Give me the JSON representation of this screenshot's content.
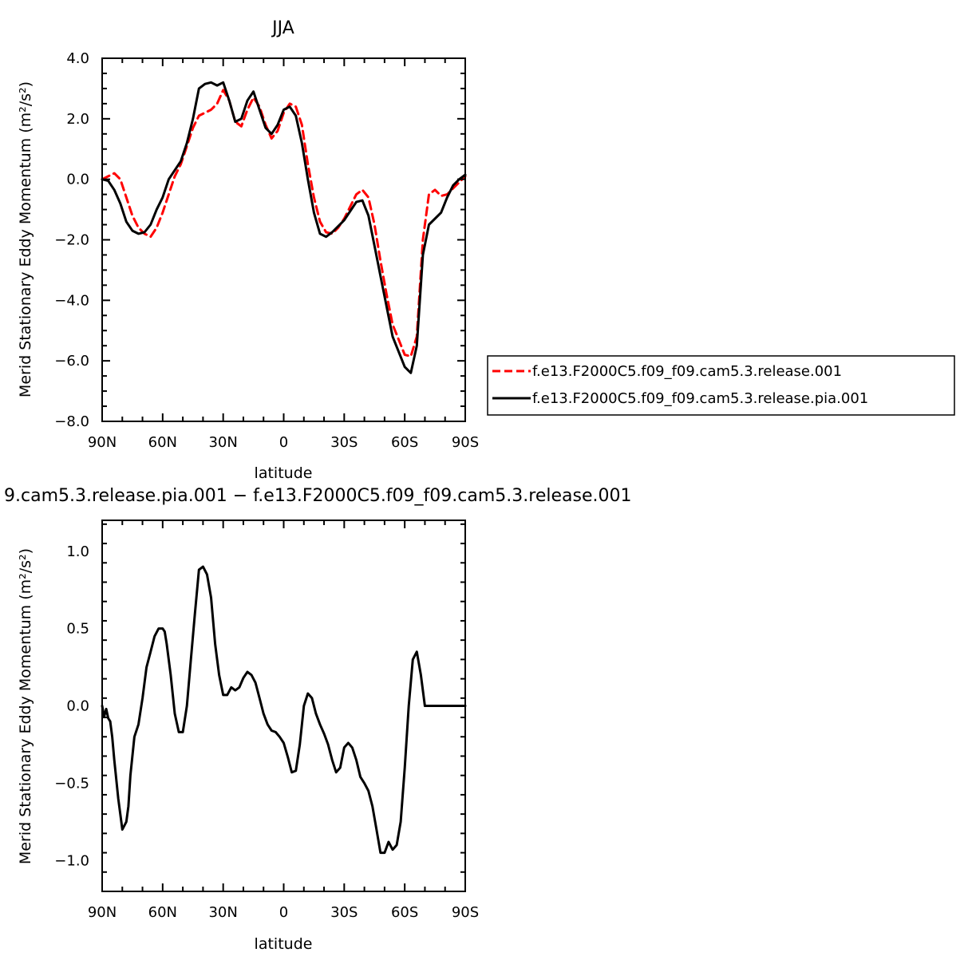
{
  "chart_data": [
    {
      "type": "line",
      "title": "JJA",
      "xlabel": "latitude",
      "ylabel": "Merid Stationary Eddy Momentum (m²/s²)",
      "xlim": [
        90,
        -90
      ],
      "ylim": [
        -8,
        4
      ],
      "x_ticks": [
        {
          "value": 90,
          "label": "90N"
        },
        {
          "value": 60,
          "label": "60N"
        },
        {
          "value": 30,
          "label": "30N"
        },
        {
          "value": 0,
          "label": "0"
        },
        {
          "value": -30,
          "label": "30S"
        },
        {
          "value": -60,
          "label": "60S"
        },
        {
          "value": -90,
          "label": "90S"
        }
      ],
      "y_ticks": [
        {
          "value": 4,
          "label": "4.0"
        },
        {
          "value": 2,
          "label": "2.0"
        },
        {
          "value": 0,
          "label": "0.0"
        },
        {
          "value": -2,
          "label": "−2.0"
        },
        {
          "value": -4,
          "label": "−4.0"
        },
        {
          "value": -6,
          "label": "−6.0"
        },
        {
          "value": -8,
          "label": "−8.0"
        }
      ],
      "legend_position": "right",
      "series": [
        {
          "name": "f.e13.F2000C5.f09_f09.cam5.3.release.001",
          "color": "#ff0000",
          "dash": "dashed",
          "x": [
            90,
            87,
            84,
            81,
            78,
            75,
            72,
            69,
            66,
            63,
            60,
            57,
            54,
            51,
            48,
            45,
            42,
            39,
            36,
            33,
            30,
            27,
            24,
            21,
            18,
            15,
            12,
            9,
            6,
            3,
            0,
            -3,
            -6,
            -9,
            -12,
            -15,
            -18,
            -21,
            -24,
            -27,
            -30,
            -33,
            -36,
            -39,
            -42,
            -45,
            -48,
            -51,
            -54,
            -57,
            -60,
            -63,
            -66,
            -69,
            -72,
            -75,
            -78,
            -81,
            -84,
            -87,
            -90
          ],
          "y": [
            0.0,
            0.1,
            0.2,
            0.0,
            -0.6,
            -1.2,
            -1.6,
            -1.8,
            -1.9,
            -1.6,
            -1.1,
            -0.5,
            0.1,
            0.5,
            1.1,
            1.7,
            2.1,
            2.2,
            2.3,
            2.5,
            2.95,
            2.6,
            1.9,
            1.75,
            2.3,
            2.7,
            2.4,
            1.8,
            1.35,
            1.6,
            2.2,
            2.5,
            2.4,
            1.8,
            0.5,
            -0.6,
            -1.4,
            -1.75,
            -1.8,
            -1.6,
            -1.3,
            -0.9,
            -0.5,
            -0.35,
            -0.6,
            -1.5,
            -2.7,
            -3.8,
            -4.8,
            -5.3,
            -5.8,
            -5.85,
            -5.2,
            -2.0,
            -0.5,
            -0.35,
            -0.55,
            -0.5,
            -0.3,
            -0.1,
            0.1
          ]
        },
        {
          "name": "f.e13.F2000C5.f09_f09.cam5.3.release.pia.001",
          "color": "#000000",
          "dash": "solid",
          "x": [
            90,
            87,
            84,
            81,
            78,
            75,
            72,
            69,
            66,
            63,
            60,
            57,
            54,
            51,
            48,
            45,
            42,
            39,
            36,
            33,
            30,
            27,
            24,
            21,
            18,
            15,
            12,
            9,
            6,
            3,
            0,
            -3,
            -6,
            -9,
            -12,
            -15,
            -18,
            -21,
            -24,
            -27,
            -30,
            -33,
            -36,
            -39,
            -42,
            -45,
            -48,
            -51,
            -54,
            -57,
            -60,
            -63,
            -66,
            -69,
            -72,
            -75,
            -78,
            -81,
            -84,
            -87,
            -90
          ],
          "y": [
            0.0,
            -0.05,
            -0.35,
            -0.8,
            -1.4,
            -1.7,
            -1.8,
            -1.75,
            -1.5,
            -1.0,
            -0.6,
            0.0,
            0.3,
            0.6,
            1.2,
            2.0,
            3.0,
            3.15,
            3.2,
            3.1,
            3.2,
            2.6,
            1.9,
            2.0,
            2.6,
            2.9,
            2.3,
            1.7,
            1.5,
            1.8,
            2.3,
            2.4,
            2.1,
            1.2,
            0.0,
            -1.1,
            -1.8,
            -1.9,
            -1.75,
            -1.55,
            -1.35,
            -1.05,
            -0.75,
            -0.7,
            -1.2,
            -2.2,
            -3.2,
            -4.2,
            -5.2,
            -5.7,
            -6.2,
            -6.4,
            -5.5,
            -2.5,
            -1.5,
            -1.3,
            -1.1,
            -0.6,
            -0.2,
            0.0,
            0.15
          ]
        }
      ]
    },
    {
      "type": "line",
      "title": "9.cam5.3.release.pia.001 − f.e13.F2000C5.f09_f09.cam5.3.release.001",
      "xlabel": "latitude",
      "ylabel": "Merid Stationary Eddy Momentum (m²/s²)",
      "xlim": [
        90,
        -90
      ],
      "ylim": [
        -1.2,
        1.2
      ],
      "x_ticks": [
        {
          "value": 90,
          "label": "90N"
        },
        {
          "value": 60,
          "label": "60N"
        },
        {
          "value": 30,
          "label": "30N"
        },
        {
          "value": 0,
          "label": "0"
        },
        {
          "value": -30,
          "label": "30S"
        },
        {
          "value": -60,
          "label": "60S"
        },
        {
          "value": -90,
          "label": "90S"
        }
      ],
      "y_ticks": [
        {
          "value": 1.0,
          "label": "1.0"
        },
        {
          "value": 0.5,
          "label": "0.5"
        },
        {
          "value": 0.0,
          "label": "0.0"
        },
        {
          "value": -0.5,
          "label": "−0.5"
        },
        {
          "value": -1.0,
          "label": "−1.0"
        }
      ],
      "series": [
        {
          "color": "#000000",
          "dash": "solid",
          "x": [
            90,
            89,
            88,
            87,
            86,
            85,
            84,
            82,
            80,
            78,
            77,
            76,
            74,
            72,
            70,
            68,
            66,
            64,
            62,
            60,
            59,
            58,
            56,
            54,
            52,
            50,
            48,
            46,
            44,
            42,
            40,
            38,
            36,
            34,
            32,
            30,
            28,
            26,
            24,
            22,
            20,
            18,
            16,
            14,
            12,
            10,
            8,
            6,
            4,
            2,
            0,
            -2,
            -4,
            -6,
            -8,
            -10,
            -12,
            -14,
            -16,
            -18,
            -20,
            -22,
            -24,
            -26,
            -28,
            -30,
            -32,
            -34,
            -36,
            -38,
            -40,
            -42,
            -44,
            -46,
            -48,
            -50,
            -52,
            -54,
            -56,
            -58,
            -60,
            -62,
            -64,
            -66,
            -68,
            -70,
            -71,
            -72,
            -73,
            -74,
            -75,
            -76,
            -77,
            -78,
            -80,
            -82,
            -84,
            -86,
            -87,
            -88,
            -89,
            -90
          ],
          "y": [
            0.0,
            -0.07,
            -0.02,
            -0.08,
            -0.1,
            -0.2,
            -0.35,
            -0.6,
            -0.8,
            -0.75,
            -0.65,
            -0.45,
            -0.2,
            -0.12,
            0.05,
            0.25,
            0.35,
            0.45,
            0.5,
            0.5,
            0.48,
            0.4,
            0.2,
            -0.05,
            -0.17,
            -0.17,
            0.0,
            0.3,
            0.6,
            0.88,
            0.9,
            0.85,
            0.7,
            0.4,
            0.2,
            0.07,
            0.07,
            0.12,
            0.1,
            0.12,
            0.18,
            0.22,
            0.2,
            0.15,
            0.05,
            -0.05,
            -0.12,
            -0.16,
            -0.17,
            -0.2,
            -0.24,
            -0.33,
            -0.43,
            -0.42,
            -0.25,
            0.0,
            0.08,
            0.05,
            -0.05,
            -0.12,
            -0.18,
            -0.25,
            -0.35,
            -0.43,
            -0.4,
            -0.27,
            -0.24,
            -0.27,
            -0.35,
            -0.46,
            -0.5,
            -0.55,
            -0.65,
            -0.8,
            -0.95,
            -0.95,
            -0.88,
            -0.93,
            -0.9,
            -0.75,
            -0.4,
            0.0,
            0.3,
            0.35,
            0.2,
            0.0,
            0.0,
            0.0,
            0.0,
            0.0,
            0.0,
            0.0,
            0.0,
            0.0,
            0.0,
            0.0,
            0.0,
            0.0,
            0.0,
            0.0,
            0.0,
            0.0
          ]
        }
      ]
    }
  ]
}
